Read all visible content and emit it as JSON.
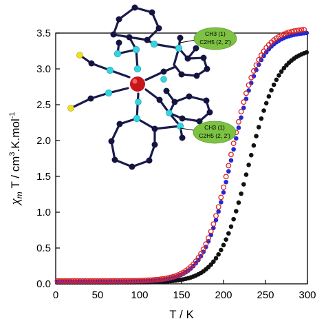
{
  "colors": {
    "black_series": "#111111",
    "blue_series": "#1f2bd6",
    "red_series": "#e0221e",
    "callout_fill": "#7dc242",
    "bond_color": "#1a1a4a",
    "metal_color": "#c8151b",
    "nitrogen_color": "#33d6e0",
    "sulfur_color": "#f0e020"
  },
  "chart_data": {
    "type": "scatter",
    "xlabel": "T / K",
    "ylabel_parts": {
      "symbol": "χ",
      "sub": "m",
      "mid": "T / cm",
      "sup": "3",
      "rest": ".K.mol",
      "sup2": "-1"
    },
    "xlim": [
      0,
      300
    ],
    "ylim": [
      0,
      3.5
    ],
    "xticks": [
      0,
      50,
      100,
      150,
      200,
      250,
      300
    ],
    "yticks": [
      0.0,
      0.5,
      1.0,
      1.5,
      2.0,
      2.5,
      3.0,
      3.5
    ],
    "series": [
      {
        "key": "black",
        "marker": "filled-circle",
        "color": "#111111",
        "curve": {
          "T_half": 230,
          "width": 18,
          "plateau": 3.3,
          "base": 0.02,
          "rise_start": 120
        }
      },
      {
        "key": "blue",
        "marker": "filled-circle",
        "color": "#1f2bd6",
        "curve": {
          "T_half": 210,
          "width": 17,
          "plateau": 3.52,
          "base": 0.03,
          "rise_start": 105
        }
      },
      {
        "key": "red",
        "marker": "open-circle",
        "color": "#e0221e",
        "curve": {
          "T_half": 209,
          "width": 17,
          "plateau": 3.57,
          "base": 0.04,
          "rise_start": 105
        }
      }
    ]
  },
  "inset": {
    "labels": [
      {
        "line1": "CH3 (1)",
        "line2": "C2H5 (2, 2')"
      },
      {
        "line1": "CH3 (1)",
        "line2": "C2H5 (2, 2')"
      }
    ]
  }
}
